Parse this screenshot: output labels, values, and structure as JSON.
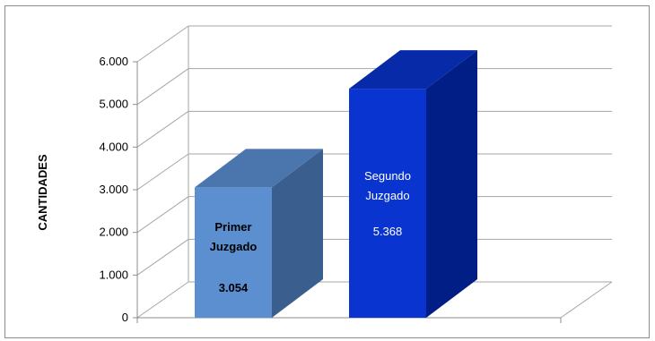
{
  "chart_data": {
    "type": "bar",
    "style": "3d-column",
    "categories": [
      "Primer Juzgado",
      "Segundo Juzgado"
    ],
    "label_lines": [
      [
        "Primer",
        "Juzgado"
      ],
      [
        "Segundo",
        "Juzgado"
      ]
    ],
    "values": [
      3054,
      5368
    ],
    "value_labels": [
      "3.054",
      "5.368"
    ],
    "ylabel": "CANTIDADES",
    "xlabel": "",
    "title": "",
    "ylim": [
      0,
      6000
    ],
    "yticks": [
      0,
      1000,
      2000,
      3000,
      4000,
      5000,
      6000
    ],
    "ytick_labels": [
      "0",
      "1.000",
      "2.000",
      "3.000",
      "4.000",
      "5.000",
      "6.000"
    ],
    "grid": true,
    "legend": "none",
    "colors": {
      "bar1_front": "#5b8fd0",
      "bar1_side": "#3a5f8e",
      "bar1_top": "#4a76ad",
      "bar1_text": "#000000",
      "bar1_text_bold": true,
      "bar2_front": "#0a34d0",
      "bar2_side": "#001e86",
      "bar2_top": "#062aa8",
      "bar2_text": "#ffffff",
      "bar2_text_bold": false,
      "gridline": "#a6a6a6"
    }
  }
}
